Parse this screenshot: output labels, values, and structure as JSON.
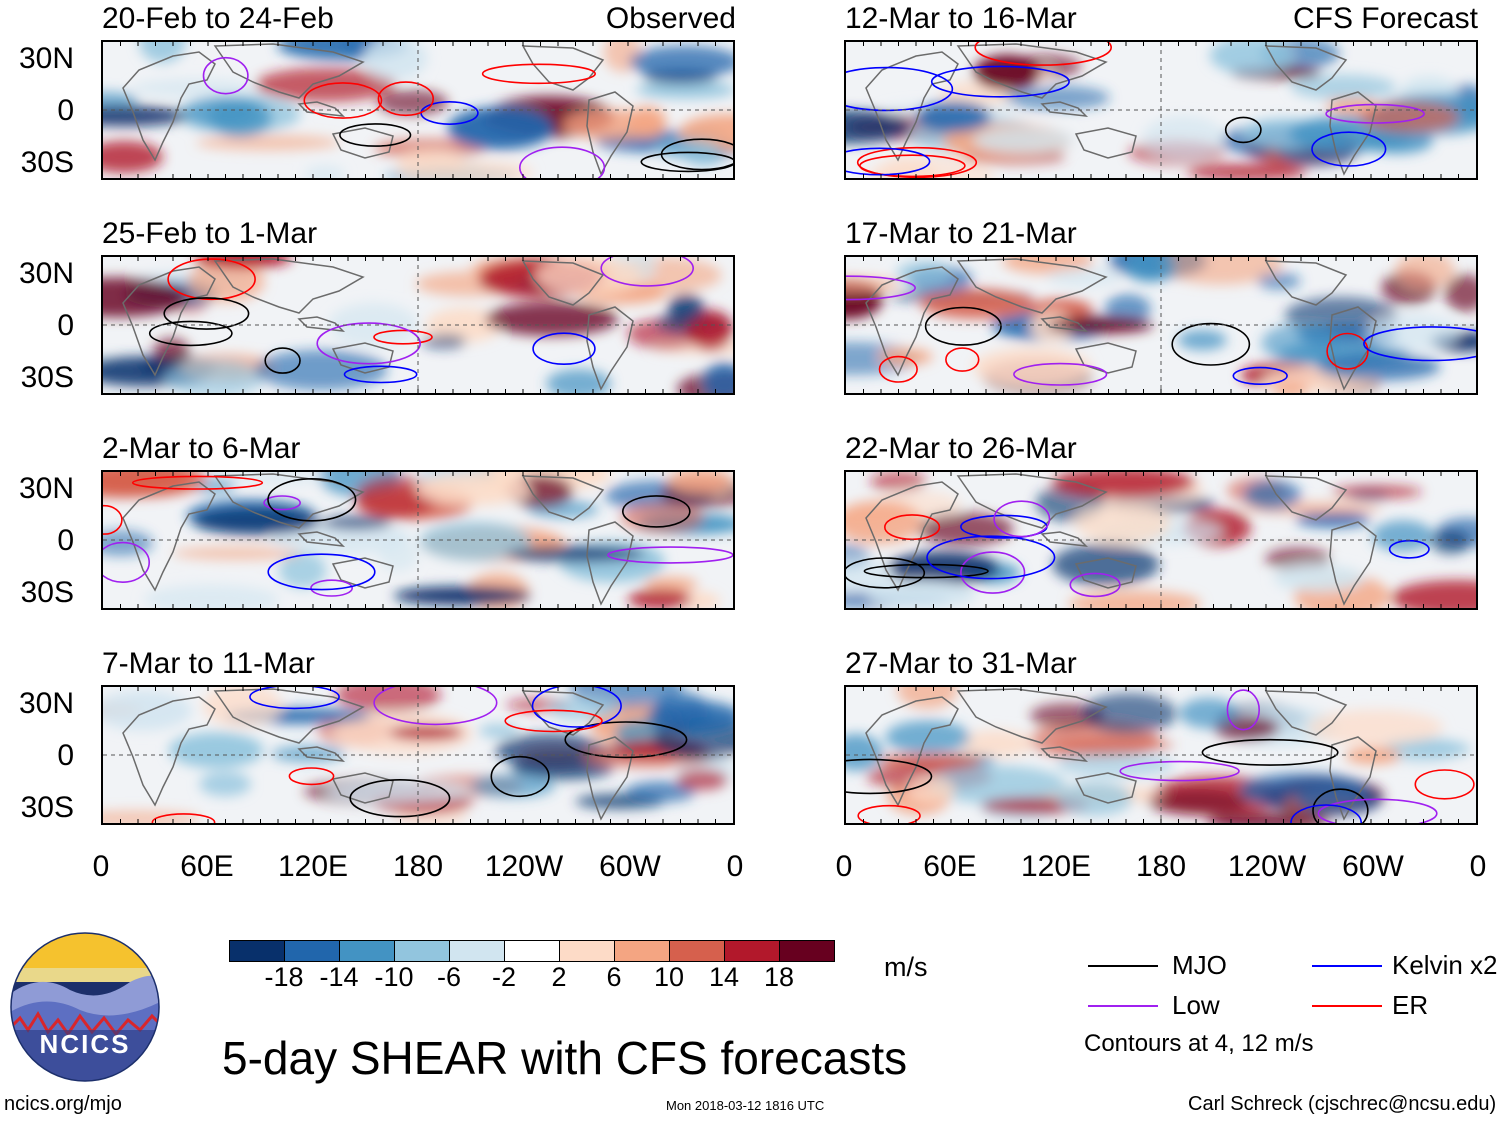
{
  "title": "5-day SHEAR with CFS forecasts",
  "observed_label": "Observed",
  "forecast_label": "CFS Forecast",
  "panels_left": [
    {
      "title": "20-Feb to 24-Feb"
    },
    {
      "title": "25-Feb to 1-Mar"
    },
    {
      "title": "2-Mar to 6-Mar"
    },
    {
      "title": "7-Mar to 11-Mar"
    }
  ],
  "panels_right": [
    {
      "title": "12-Mar to 16-Mar"
    },
    {
      "title": "17-Mar to 21-Mar"
    },
    {
      "title": "22-Mar to 26-Mar"
    },
    {
      "title": "27-Mar to 31-Mar"
    }
  ],
  "lat_labels": [
    "30N",
    "0",
    "30S"
  ],
  "lon_labels": [
    "0",
    "60E",
    "120E",
    "180",
    "120W",
    "60W",
    "0"
  ],
  "colorbar": {
    "colors": [
      "#08306b",
      "#2166ac",
      "#4393c3",
      "#92c5de",
      "#d1e5f0",
      "#ffffff",
      "#fddbc7",
      "#f4a582",
      "#d6604d",
      "#b2182b",
      "#67001f"
    ],
    "ticks": [
      "-18",
      "-14",
      "-10",
      "-6",
      "-2",
      "2",
      "6",
      "10",
      "14",
      "18"
    ],
    "units": "m/s"
  },
  "legend": {
    "items": [
      {
        "label": "MJO",
        "color": "#000000"
      },
      {
        "label": "Kelvin x2",
        "color": "#0000ff"
      },
      {
        "label": "Low",
        "color": "#a020f0"
      },
      {
        "label": "ER",
        "color": "#ff0000"
      }
    ],
    "note": "Contours at 4, 12 m/s"
  },
  "logo_text": "NCICS",
  "footer": {
    "left": "ncics.org/mjo",
    "center": "Mon 2018-03-12 1816 UTC",
    "right": "Carl Schreck (cjschrec@ncsu.edu)"
  },
  "chart_data": {
    "type": "heatmap",
    "variable": "5-day wind shear anomaly",
    "units": "m/s",
    "x_axis": {
      "ticks": [
        "0",
        "60E",
        "120E",
        "180",
        "120W",
        "60W",
        "0"
      ],
      "range_deg": [
        0,
        360
      ]
    },
    "y_axis": {
      "ticks": [
        "30N",
        "0",
        "30S"
      ],
      "range_deg": [
        -40,
        40
      ]
    },
    "color_levels": [
      -18,
      -14,
      -10,
      -6,
      -2,
      2,
      6,
      10,
      14,
      18
    ],
    "contour_levels": [
      4,
      12
    ],
    "series": [
      {
        "name": "MJO",
        "color": "#000000"
      },
      {
        "name": "Kelvin x2",
        "color": "#0000ff"
      },
      {
        "name": "Low",
        "color": "#a020f0"
      },
      {
        "name": "ER",
        "color": "#ff0000"
      }
    ],
    "panels": [
      {
        "period": "20-Feb to 24-Feb",
        "source": "Observed"
      },
      {
        "period": "25-Feb to 1-Mar",
        "source": "Observed"
      },
      {
        "period": "2-Mar to 6-Mar",
        "source": "Observed"
      },
      {
        "period": "7-Mar to 11-Mar",
        "source": "Observed"
      },
      {
        "period": "12-Mar to 16-Mar",
        "source": "CFS Forecast"
      },
      {
        "period": "17-Mar to 21-Mar",
        "source": "CFS Forecast"
      },
      {
        "period": "22-Mar to 26-Mar",
        "source": "CFS Forecast"
      },
      {
        "period": "27-Mar to 31-Mar",
        "source": "CFS Forecast"
      }
    ]
  }
}
